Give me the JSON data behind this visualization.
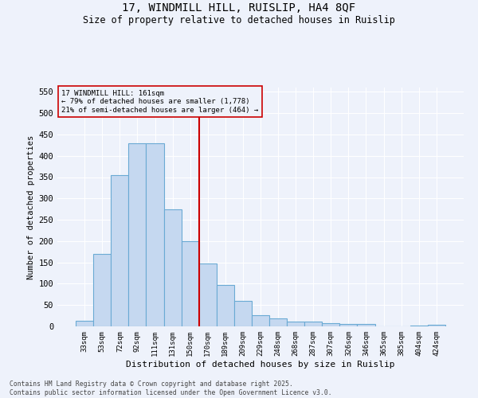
{
  "title_line1": "17, WINDMILL HILL, RUISLIP, HA4 8QF",
  "title_line2": "Size of property relative to detached houses in Ruislip",
  "xlabel": "Distribution of detached houses by size in Ruislip",
  "ylabel": "Number of detached properties",
  "categories": [
    "33sqm",
    "53sqm",
    "72sqm",
    "92sqm",
    "111sqm",
    "131sqm",
    "150sqm",
    "170sqm",
    "189sqm",
    "209sqm",
    "229sqm",
    "248sqm",
    "268sqm",
    "287sqm",
    "307sqm",
    "326sqm",
    "346sqm",
    "365sqm",
    "385sqm",
    "404sqm",
    "424sqm"
  ],
  "values": [
    13,
    170,
    355,
    430,
    430,
    275,
    200,
    148,
    98,
    60,
    27,
    19,
    11,
    11,
    7,
    5,
    5,
    0,
    0,
    2,
    3
  ],
  "bar_color": "#c5d8f0",
  "bar_edge_color": "#6aaad4",
  "vline_x": 6.5,
  "vline_color": "#cc0000",
  "annotation_line1": "17 WINDMILL HILL: 161sqm",
  "annotation_line2": "← 79% of detached houses are smaller (1,778)",
  "annotation_line3": "21% of semi-detached houses are larger (464) →",
  "annotation_box_edge": "#cc0000",
  "ylim": [
    0,
    560
  ],
  "yticks": [
    0,
    50,
    100,
    150,
    200,
    250,
    300,
    350,
    400,
    450,
    500,
    550
  ],
  "footer_line1": "Contains HM Land Registry data © Crown copyright and database right 2025.",
  "footer_line2": "Contains public sector information licensed under the Open Government Licence v3.0.",
  "bg_color": "#eef2fb",
  "grid_color": "#ffffff"
}
